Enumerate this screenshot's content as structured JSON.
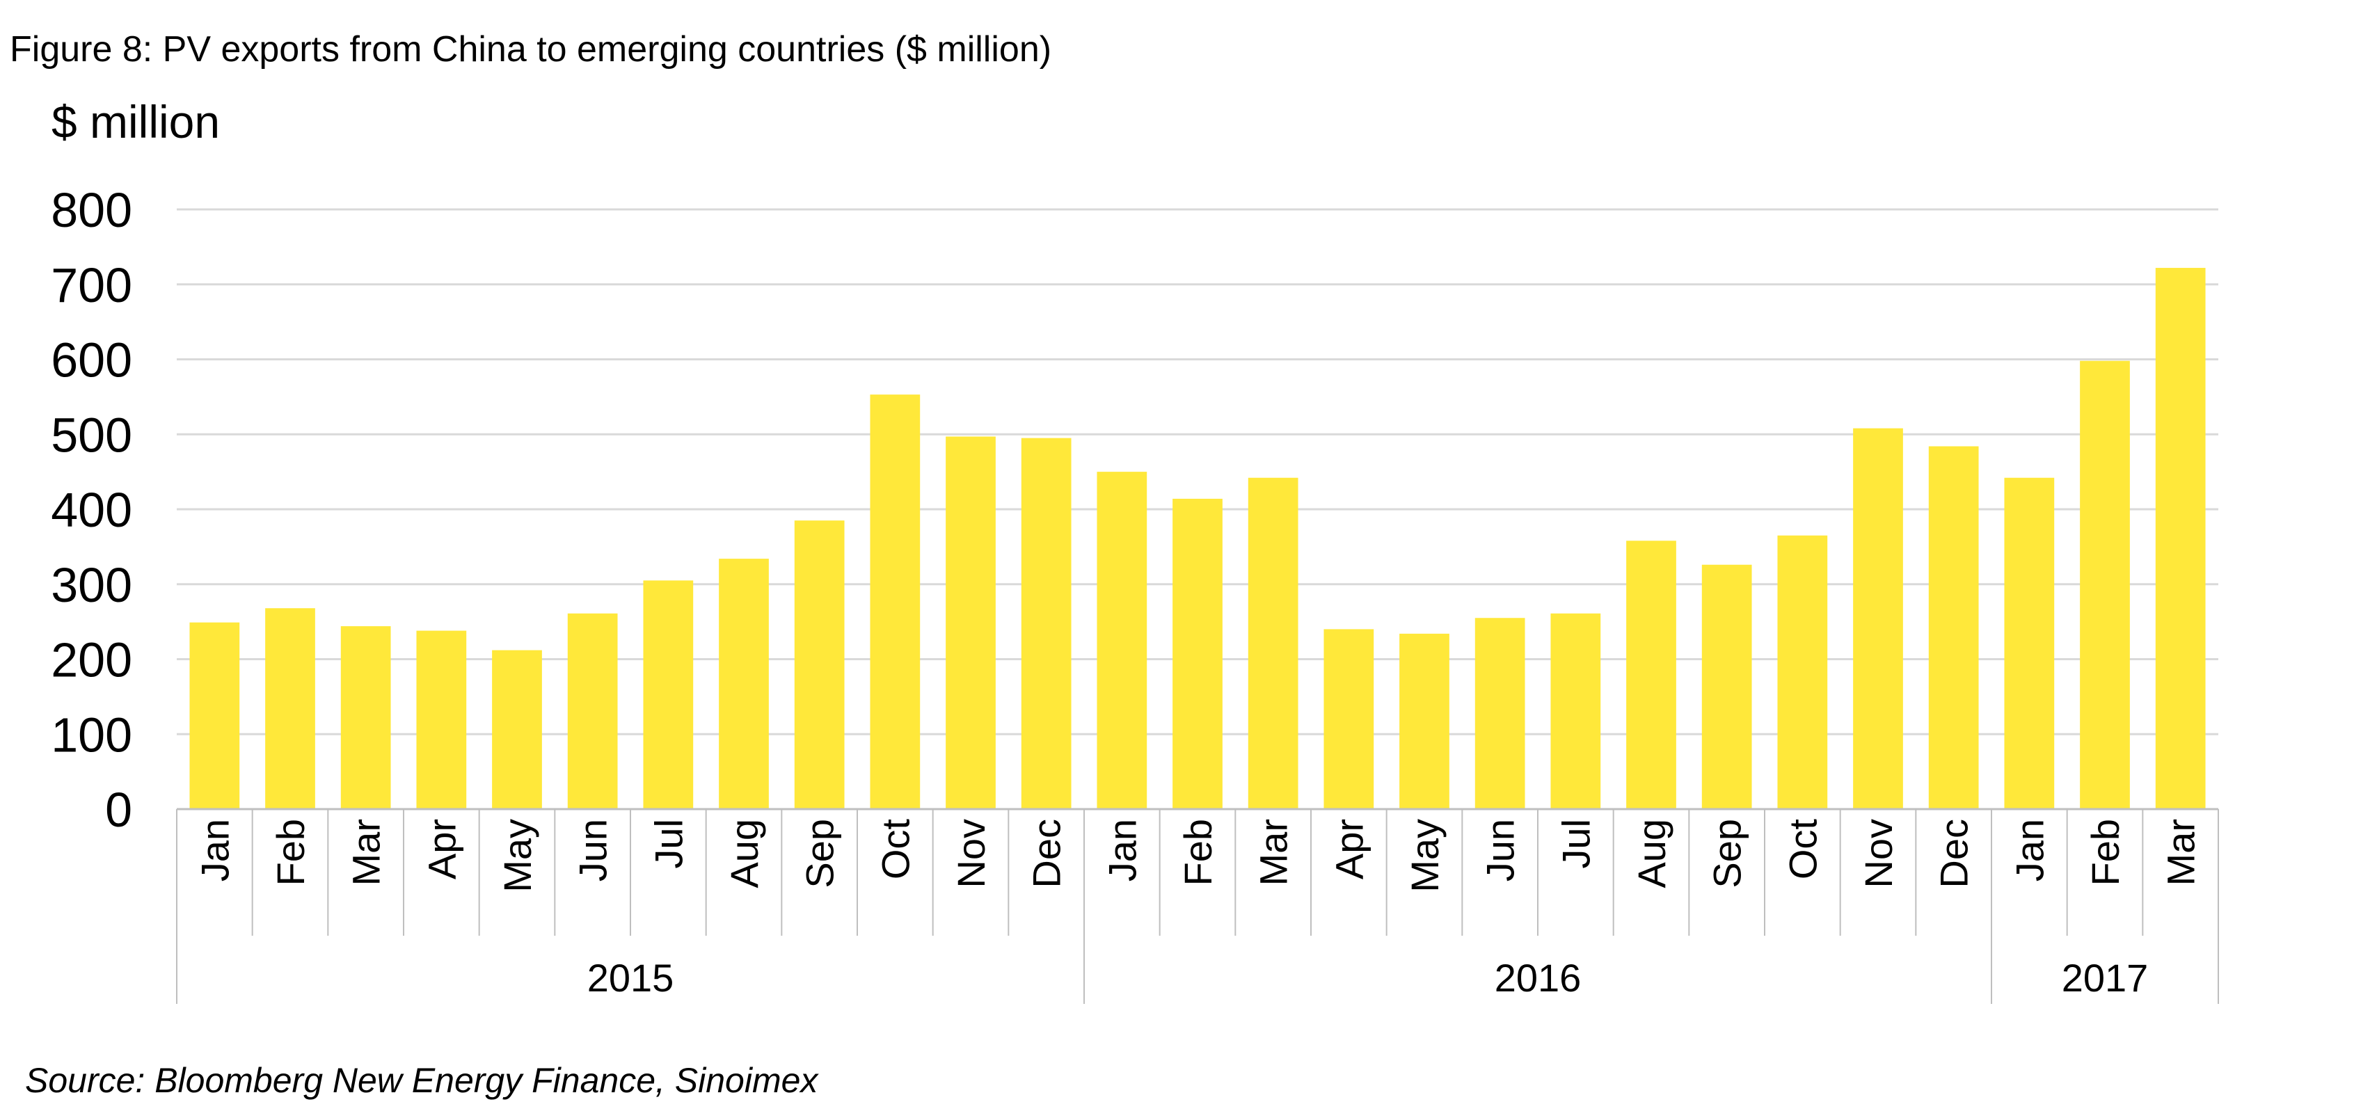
{
  "chart_data": {
    "type": "bar",
    "title": "Figure 8: PV exports from China to emerging countries ($ million)",
    "ylabel": "$ million",
    "xlabel": "",
    "ylim": [
      0,
      800
    ],
    "yticks": [
      0,
      100,
      200,
      300,
      400,
      500,
      600,
      700,
      800
    ],
    "grid": true,
    "bar_color": "#FFE83A",
    "categories": [
      "Jan",
      "Feb",
      "Mar",
      "Apr",
      "May",
      "Jun",
      "Jul",
      "Aug",
      "Sep",
      "Oct",
      "Nov",
      "Dec",
      "Jan",
      "Feb",
      "Mar",
      "Apr",
      "May",
      "Jun",
      "Jul",
      "Aug",
      "Sep",
      "Oct",
      "Nov",
      "Dec",
      "Jan",
      "Feb",
      "Mar"
    ],
    "groups": [
      {
        "label": "2015",
        "count": 12
      },
      {
        "label": "2016",
        "count": 12
      },
      {
        "label": "2017",
        "count": 3
      }
    ],
    "values": [
      249,
      268,
      244,
      238,
      212,
      261,
      305,
      334,
      385,
      553,
      497,
      495,
      450,
      414,
      442,
      240,
      234,
      255,
      261,
      358,
      326,
      365,
      508,
      484,
      442,
      598,
      722
    ],
    "source": "Source: Bloomberg New Energy Finance, Sinoimex"
  }
}
